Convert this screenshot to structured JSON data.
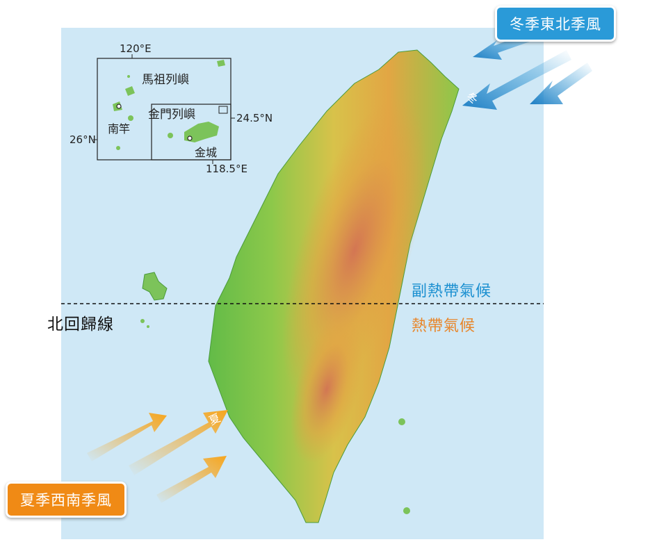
{
  "inset": {
    "lon_120": "120°E",
    "lat_26": "26°N",
    "lat_24_5": "24.5°N",
    "lon_118_5": "118.5°E",
    "matsu": "馬祖列嶼",
    "nangan": "南竿",
    "kinmen_islands": "金門列嶼",
    "jincheng": "金城"
  },
  "zones": {
    "subtropical": "副熱帶氣候",
    "tropical": "熱帶氣候",
    "tropic_line": "北回歸線"
  },
  "monsoon": {
    "winter_title": "冬季東北季風",
    "winter_tag": "冬",
    "summer_title": "夏季西南季風",
    "summer_tag": "夏"
  },
  "colors": {
    "sea": "#cfe8f6",
    "lowland": "#5fb84a",
    "highland": "#e0a040",
    "peak": "#c85a5a",
    "winter_wind": "#2a9ad8",
    "summer_wind": "#f5a623"
  }
}
